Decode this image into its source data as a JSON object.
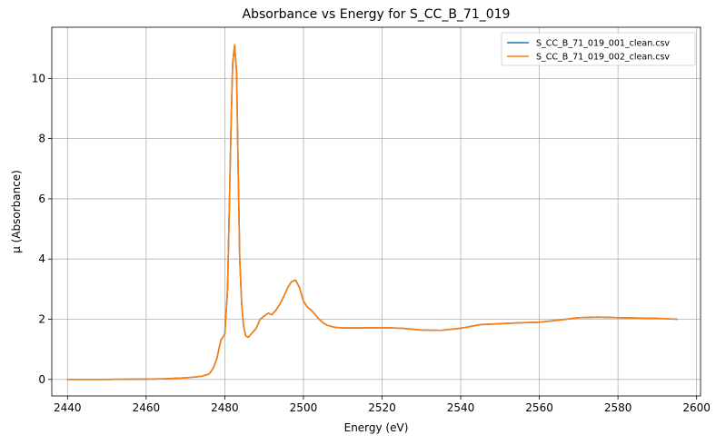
{
  "chart_data": {
    "type": "line",
    "title": "Absorbance vs Energy for S_CC_B_71_019",
    "xlabel": "Energy (eV)",
    "ylabel": "μ (Absorbance)",
    "xlim": [
      2436,
      2601
    ],
    "ylim": [
      -0.55,
      11.7
    ],
    "xticks": [
      2440,
      2460,
      2480,
      2500,
      2520,
      2540,
      2560,
      2580,
      2600
    ],
    "yticks": [
      0,
      2,
      4,
      6,
      8,
      10
    ],
    "grid": true,
    "legend_position": "top-right",
    "colors": {
      "series_1": "#1f77b4",
      "series_2": "#ff7f0e",
      "grid": "#b0b0b0"
    },
    "series": [
      {
        "name": "S_CC_B_71_019_001_clean.csv",
        "x": [
          2440,
          2450,
          2460,
          2465,
          2470,
          2474,
          2476,
          2477,
          2478,
          2479,
          2480,
          2480.7,
          2481.2,
          2481.6,
          2482,
          2482.5,
          2483,
          2483.4,
          2483.8,
          2484.3,
          2484.8,
          2485.3,
          2486,
          2487,
          2488,
          2489,
          2490,
          2491,
          2492,
          2493,
          2494,
          2495,
          2496,
          2497,
          2498,
          2499,
          2500,
          2501,
          2502,
          2503,
          2504,
          2505,
          2506,
          2508,
          2510,
          2515,
          2520,
          2525,
          2530,
          2535,
          2540,
          2545,
          2550,
          2555,
          2560,
          2565,
          2570,
          2575,
          2580,
          2585,
          2590,
          2595
        ],
        "y": [
          0.0,
          0.0,
          0.01,
          0.02,
          0.05,
          0.1,
          0.18,
          0.35,
          0.7,
          1.3,
          1.5,
          3.0,
          6.0,
          8.5,
          10.5,
          11.1,
          10.2,
          7.0,
          4.0,
          2.5,
          1.75,
          1.45,
          1.4,
          1.55,
          1.7,
          2.0,
          2.1,
          2.2,
          2.15,
          2.3,
          2.5,
          2.75,
          3.05,
          3.25,
          3.3,
          3.05,
          2.6,
          2.4,
          2.3,
          2.15,
          2.0,
          1.88,
          1.8,
          1.73,
          1.71,
          1.71,
          1.72,
          1.7,
          1.64,
          1.63,
          1.7,
          1.82,
          1.85,
          1.88,
          1.9,
          1.97,
          2.05,
          2.07,
          2.05,
          2.04,
          2.03,
          2.0
        ]
      },
      {
        "name": "S_CC_B_71_019_002_clean.csv",
        "x": [
          2440,
          2450,
          2460,
          2465,
          2470,
          2474,
          2476,
          2477,
          2478,
          2479,
          2480,
          2480.7,
          2481.2,
          2481.6,
          2482,
          2482.5,
          2483,
          2483.4,
          2483.8,
          2484.3,
          2484.8,
          2485.3,
          2486,
          2487,
          2488,
          2489,
          2490,
          2491,
          2492,
          2493,
          2494,
          2495,
          2496,
          2497,
          2498,
          2499,
          2500,
          2501,
          2502,
          2503,
          2504,
          2505,
          2506,
          2508,
          2510,
          2515,
          2520,
          2525,
          2530,
          2535,
          2540,
          2545,
          2550,
          2555,
          2560,
          2565,
          2570,
          2575,
          2580,
          2585,
          2590,
          2595
        ],
        "y": [
          0.0,
          0.0,
          0.01,
          0.02,
          0.05,
          0.1,
          0.18,
          0.35,
          0.7,
          1.3,
          1.5,
          3.0,
          6.0,
          8.5,
          10.5,
          11.12,
          10.2,
          7.0,
          4.0,
          2.5,
          1.75,
          1.45,
          1.4,
          1.55,
          1.7,
          2.0,
          2.1,
          2.2,
          2.15,
          2.3,
          2.5,
          2.75,
          3.05,
          3.25,
          3.3,
          3.05,
          2.6,
          2.4,
          2.3,
          2.15,
          2.0,
          1.88,
          1.8,
          1.73,
          1.71,
          1.71,
          1.72,
          1.7,
          1.64,
          1.63,
          1.7,
          1.82,
          1.85,
          1.88,
          1.9,
          1.97,
          2.05,
          2.07,
          2.05,
          2.04,
          2.03,
          2.0
        ]
      }
    ]
  }
}
